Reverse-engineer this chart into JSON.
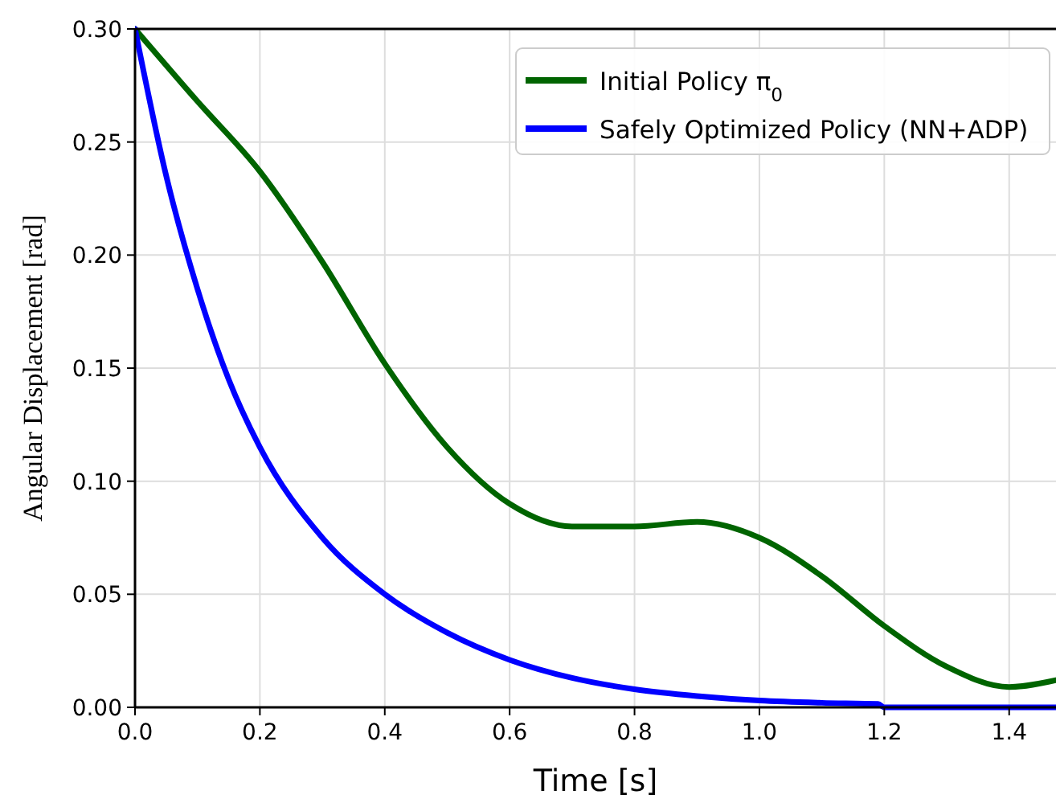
{
  "chart_data": {
    "type": "line",
    "xlabel": "Time [s]",
    "ylabel": "Angular Displacement [rad]",
    "xlim": [
      0,
      1.475
    ],
    "ylim": [
      0,
      0.3
    ],
    "xticks": [
      {
        "value": 0,
        "label": "0.0"
      },
      0.2,
      0.4,
      0.6,
      0.8,
      {
        "value": 1,
        "label": "1.0"
      },
      1.2,
      1.4
    ],
    "yticks": [
      {
        "value": 0,
        "label": "0.00"
      },
      0.05,
      {
        "value": 0.1,
        "label": "0.10"
      },
      0.15,
      {
        "value": 0.2,
        "label": "0.20"
      },
      0.25,
      {
        "value": 0.3,
        "label": "0.30"
      }
    ],
    "grid": true,
    "legend": "top right",
    "marker": "none",
    "line_style": "solid",
    "series": [
      {
        "name": "Initial Policy π$_{0}$",
        "color": "#006400",
        "x": [
          0,
          0.1,
          0.2,
          0.3,
          0.4,
          0.5,
          0.6,
          0.7,
          0.8,
          0.9,
          1.0,
          1.1,
          1.2,
          1.3,
          1.4,
          1.475
        ],
        "values": [
          0.3,
          0.268,
          0.237,
          0.197,
          0.152,
          0.115,
          0.09,
          0.08,
          0.08,
          0.082,
          0.075,
          0.058,
          0.036,
          0.018,
          0.009,
          0.012
        ]
      },
      {
        "name": "Safely Optimized Policy (NN+ADP)",
        "color": "#0000ff",
        "x": [
          0,
          0.05,
          0.1,
          0.15,
          0.2,
          0.3,
          0.4,
          0.5,
          0.6,
          0.7,
          0.8,
          0.9,
          1.0,
          1.1,
          1.19,
          1.2,
          1.475
        ],
        "values": [
          0.3,
          0.235,
          0.185,
          0.145,
          0.115,
          0.075,
          0.05,
          0.033,
          0.021,
          0.013,
          0.008,
          0.005,
          0.003,
          0.002,
          0.0015,
          0,
          0
        ]
      }
    ]
  }
}
